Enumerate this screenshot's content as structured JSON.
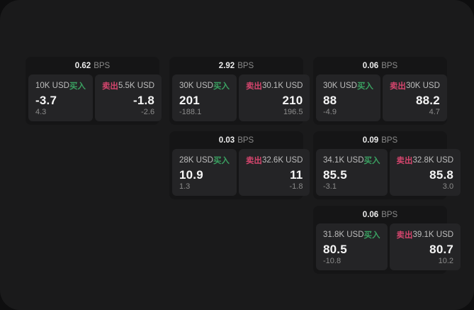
{
  "labels": {
    "bps_unit": "BPS",
    "buy_tag": "买入",
    "sell_tag": "卖出"
  },
  "colors": {
    "outer_background": "#0e0e0f",
    "screen_background": "#1a1a1b",
    "card_background": "#151516",
    "panel_background": "#242426",
    "buy_green": "#3aa061",
    "sell_red": "#d4456d"
  },
  "cards": [
    {
      "spread_bps": "0.62",
      "buy": {
        "size": "10K USD",
        "price": "-3.7",
        "delta": "4.3"
      },
      "sell": {
        "size": "5.5K USD",
        "price": "-1.8",
        "delta": "-2.6"
      }
    },
    {
      "spread_bps": "2.92",
      "buy": {
        "size": "30K USD",
        "price": "201",
        "delta": "-188.1"
      },
      "sell": {
        "size": "30.1K USD",
        "price": "210",
        "delta": "196.5"
      }
    },
    {
      "spread_bps": "0.06",
      "buy": {
        "size": "30K USD",
        "price": "88",
        "delta": "-4.9"
      },
      "sell": {
        "size": "30K USD",
        "price": "88.2",
        "delta": "4.7"
      }
    },
    {
      "spread_bps": "0.03",
      "buy": {
        "size": "28K USD",
        "price": "10.9",
        "delta": "1.3"
      },
      "sell": {
        "size": "32.6K USD",
        "price": "11",
        "delta": "-1.8"
      }
    },
    {
      "spread_bps": "0.09",
      "buy": {
        "size": "34.1K USD",
        "price": "85.5",
        "delta": "-3.1"
      },
      "sell": {
        "size": "32.8K USD",
        "price": "85.8",
        "delta": "3.0"
      }
    },
    {
      "spread_bps": "0.06",
      "buy": {
        "size": "31.8K USD",
        "price": "80.5",
        "delta": "-10.8"
      },
      "sell": {
        "size": "39.1K USD",
        "price": "80.7",
        "delta": "10.2"
      }
    }
  ]
}
